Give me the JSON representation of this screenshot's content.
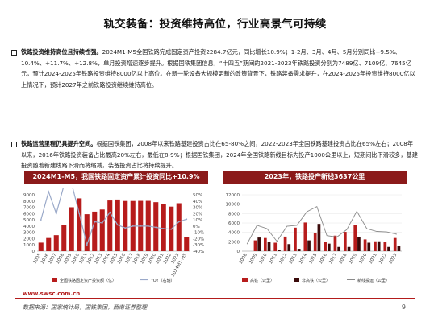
{
  "title": "轨交装备：投资维持高位，行业高景气可持续",
  "bullet1": {
    "lead": "铁路投资维持高位且持续性强。",
    "text": "2024M1-M5全国铁路完成固定资产投资2284.7亿元，同比增长10.9%；1-2月、3月、4月、5月分别同比+9.5%、10.4%、+11.7%、+12.8%，单月投资增速逐步提升。根据国铁集团信息，“十四五”期间的2021-2023年铁路投资分别为7489亿、7109亿、7645亿元，预计2024-2025年铁路投资维持8000亿以上高位。在新一轮设备大规模更新的政策背景下，铁路装备需求提升，在2024-2025年投资维持8000亿以上情况下，预计2027年之前铁路投资继续维持高位。"
  },
  "bullet2": {
    "lead": "铁路运营里程仍具提升空间。",
    "text": "根据国铁集团，2008年以来铁路基建投资占比在65-80%之间，2022-2023年全国铁路基建投资占比在65%左右；2008年以来，2016年铁路投资装备占比最高20%左右，最低在8-9%；根据国铁集团，2024年全国铁路新线目标为投产1000公里以上，短期间比下滑较多，基建投资随着新建线路下滑而将缩减，装备投资占比将持续提升。"
  },
  "chart_headers": {
    "left": "2024M1-M5，我国铁路固定资产累计投资同比+10.9%",
    "right": "2023年，铁路投产新线3637公里"
  },
  "colors": {
    "accent": "#8b1a1a",
    "rule": "#b31b1b",
    "bar": "#b71c1c",
    "bar_dark": "#3a0a0a",
    "line": "#9aa9c9",
    "line2": "#8a8a8a"
  },
  "chart_data": [
    {
      "type": "bar",
      "categories": [
        "2005",
        "2006",
        "2007",
        "2008",
        "2009",
        "2010",
        "2011",
        "2012",
        "2013",
        "2014",
        "2015",
        "2016",
        "2017",
        "2018",
        "2019",
        "2020",
        "2021",
        "2022",
        "2023",
        "2024M1-M5"
      ],
      "series": [
        {
          "name": "全国铁路固定资产投资额（亿）",
          "values": [
            1360,
            2100,
            2550,
            4170,
            7010,
            8430,
            5900,
            6310,
            6650,
            8090,
            8240,
            8010,
            8010,
            8030,
            8030,
            7820,
            7490,
            7110,
            7650,
            2280
          ]
        },
        {
          "name": "YOY（右轴）",
          "values": [
            10,
            55,
            20,
            65,
            68,
            20,
            -30,
            7,
            5,
            22,
            2,
            -3,
            0,
            0,
            0,
            -2,
            -4,
            -5,
            7,
            11
          ]
        }
      ],
      "ylim_left": [
        0,
        9000
      ],
      "ylim_right": [
        -40,
        50
      ],
      "yticks_left": [
        "0",
        "1000",
        "2000",
        "3000",
        "4000",
        "5000",
        "6000",
        "7000",
        "8000",
        "9000"
      ],
      "yticks_right": [
        "-40%",
        "-30%",
        "-20%",
        "-10%",
        "0%",
        "10%",
        "20%",
        "30%",
        "40%",
        "50%"
      ]
    },
    {
      "type": "bar",
      "categories": [
        "2008",
        "2009",
        "2010",
        "2011",
        "2012",
        "2013",
        "2014",
        "2015",
        "2016",
        "2017",
        "2018",
        "2019",
        "2020",
        "2021",
        "2022",
        "2023"
      ],
      "series": [
        {
          "name": "高铁（公里）",
          "values": [
            0,
            2300,
            2800,
            1800,
            3100,
            5000,
            6100,
            3900,
            1900,
            3300,
            4100,
            5500,
            2500,
            2100,
            2000,
            2800
          ]
        },
        {
          "name": "非高铁（公里）",
          "values": [
            0,
            2900,
            2000,
            300,
            1500,
            500,
            2300,
            5800,
            1600,
            900,
            900,
            3000,
            1800,
            2100,
            900,
            1100
          ]
        },
        {
          "name": "新线投运（公里）",
          "values": [
            1500,
            5500,
            4800,
            2100,
            5300,
            5500,
            8400,
            9500,
            3300,
            3000,
            4600,
            8500,
            4800,
            4200,
            4100,
            3600
          ]
        }
      ],
      "ylim": [
        0,
        12000
      ],
      "yticks": [
        "0",
        "2000",
        "4000",
        "6000",
        "8000",
        "10000",
        "12000"
      ]
    }
  ],
  "footer": {
    "site": "www.swsc.com.cn",
    "source": "数据来源：国家统计局，国铁集团，西南证券整理",
    "page": "9"
  }
}
